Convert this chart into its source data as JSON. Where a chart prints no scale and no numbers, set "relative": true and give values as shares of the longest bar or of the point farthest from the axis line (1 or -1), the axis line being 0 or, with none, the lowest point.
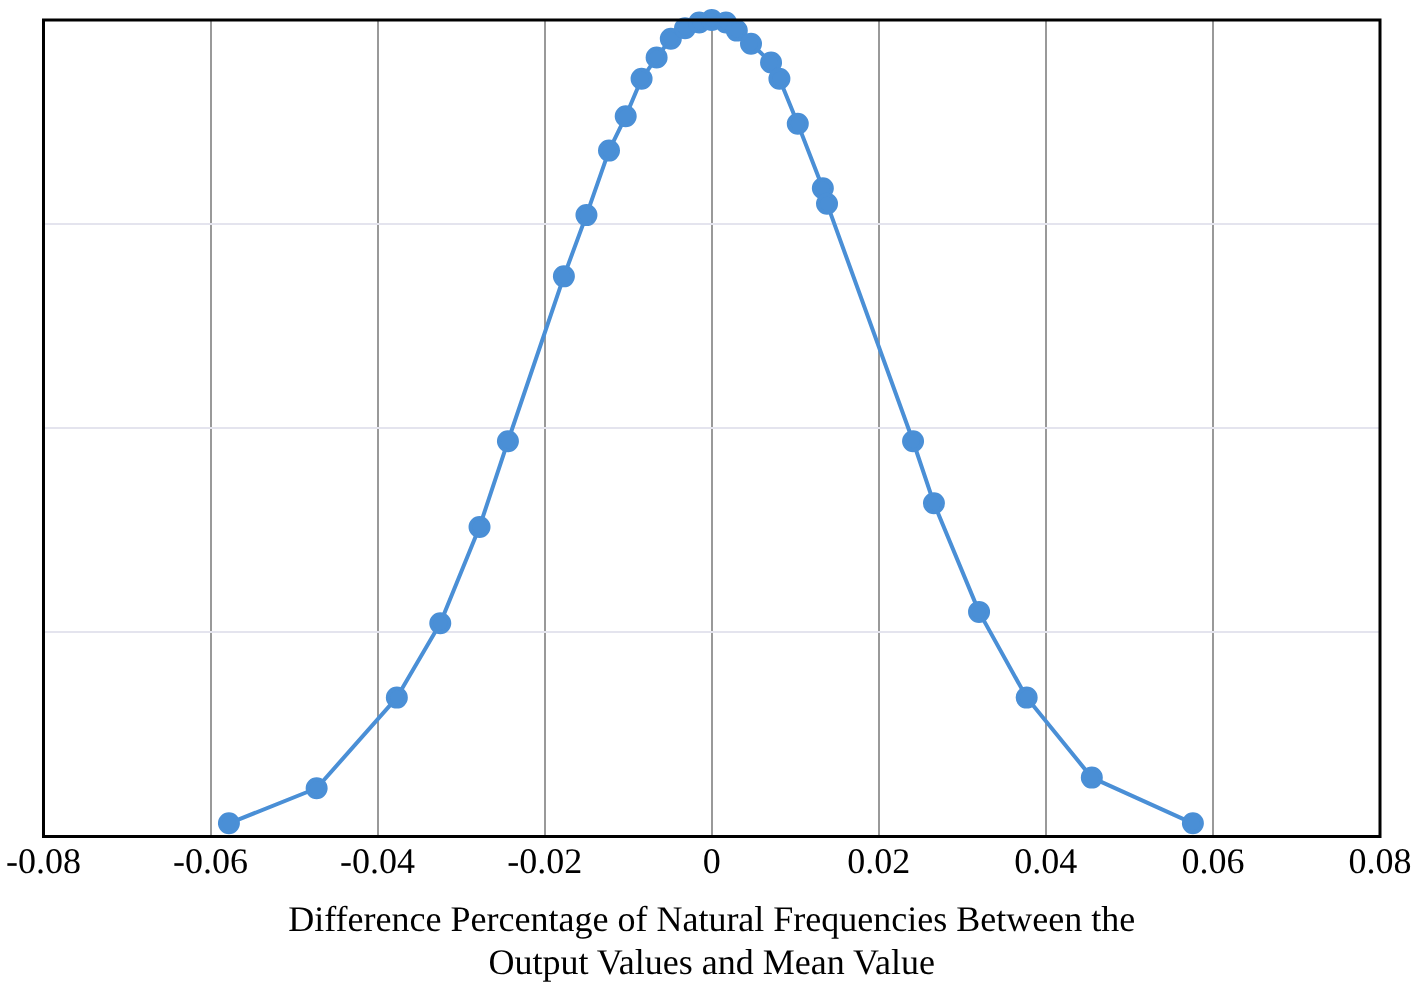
{
  "chart_data": {
    "type": "line",
    "xlabel": "Difference Percentage of Natural Frequencies Between the\nOutput Values and Mean Value",
    "relative": true,
    "grid": true,
    "marker": "circle",
    "line_style": "solid",
    "legend": false,
    "xlim": [
      -0.08,
      0.08
    ],
    "xticks": [
      -0.08,
      -0.06,
      -0.04,
      -0.02,
      0,
      0.02,
      0.04,
      0.06,
      0.08
    ],
    "series": [
      {
        "color": "#4a8fd6",
        "x": [
          -0.0578,
          -0.0473,
          -0.0377,
          -0.0325,
          -0.0278,
          -0.0244,
          -0.0177,
          -0.015,
          -0.0123,
          -0.0103,
          -0.0084,
          -0.0066,
          -0.0049,
          -0.0032,
          -0.0015,
          0,
          0.0017,
          0.003,
          0.0047,
          0.0071,
          0.0081,
          0.0103,
          0.0133,
          0.0138,
          0.0241,
          0.0266,
          0.032,
          0.0377,
          0.0455,
          0.0576
        ],
        "values": [
          0.016,
          0.059,
          0.17,
          0.261,
          0.379,
          0.484,
          0.686,
          0.761,
          0.84,
          0.882,
          0.928,
          0.954,
          0.977,
          0.99,
          0.997,
          1,
          0.997,
          0.987,
          0.971,
          0.948,
          0.928,
          0.873,
          0.794,
          0.775,
          0.484,
          0.408,
          0.275,
          0.17,
          0.072,
          0.016
        ]
      }
    ]
  }
}
